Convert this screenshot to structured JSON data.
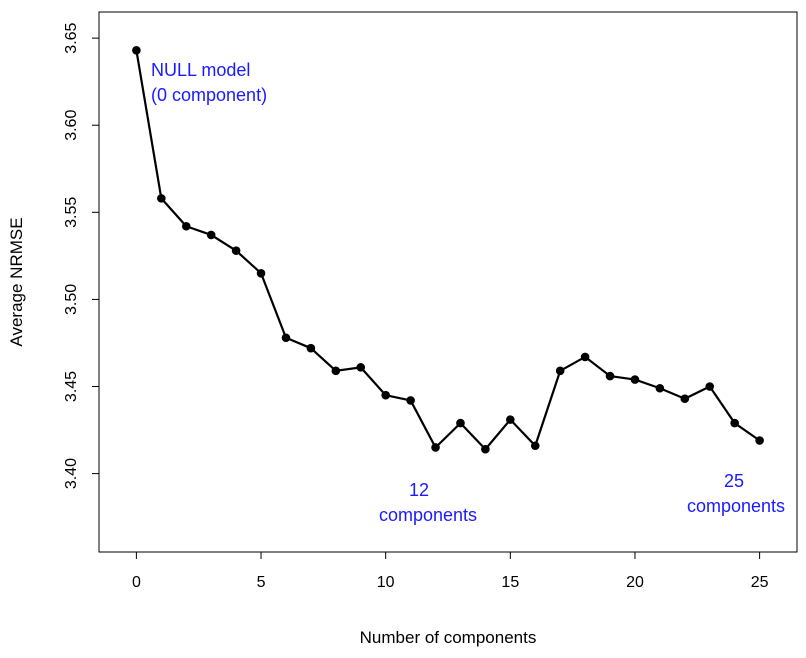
{
  "chart_data": {
    "type": "line",
    "xlabel": "Number of components",
    "ylabel": "Average NRMSE",
    "xlim": [
      -1.5,
      26.5
    ],
    "ylim": [
      3.355,
      3.665
    ],
    "x_ticks": [
      "0",
      "5",
      "10",
      "15",
      "20",
      "25"
    ],
    "x_tick_values": [
      0,
      5,
      10,
      15,
      20,
      25
    ],
    "y_ticks": [
      "3.40",
      "3.45",
      "3.50",
      "3.55",
      "3.60",
      "3.65"
    ],
    "y_tick_values": [
      3.4,
      3.45,
      3.5,
      3.55,
      3.6,
      3.65
    ],
    "grid": false,
    "series": [
      {
        "x": [
          0,
          1,
          2,
          3,
          4,
          5,
          6,
          7,
          8,
          9,
          10,
          11,
          12,
          13,
          14,
          15,
          16,
          17,
          18,
          19,
          20,
          21,
          22,
          23,
          24,
          25
        ],
        "y": [
          3.643,
          3.558,
          3.542,
          3.537,
          3.528,
          3.515,
          3.478,
          3.472,
          3.459,
          3.461,
          3.445,
          3.442,
          3.415,
          3.429,
          3.414,
          3.431,
          3.416,
          3.459,
          3.467,
          3.456,
          3.454,
          3.449,
          3.443,
          3.45,
          3.429,
          3.419
        ],
        "color": "#000000"
      }
    ],
    "annotations": [
      {
        "lines": [
          "NULL model",
          "(0 component)"
        ],
        "x": 0,
        "y": 3.643,
        "color": "#1a1aff"
      },
      {
        "lines": [
          "12",
          "components"
        ],
        "x": 12,
        "y": 3.415,
        "color": "#1a1aff"
      },
      {
        "lines": [
          "25",
          "components"
        ],
        "x": 25,
        "y": 3.419,
        "color": "#1a1aff"
      }
    ]
  }
}
